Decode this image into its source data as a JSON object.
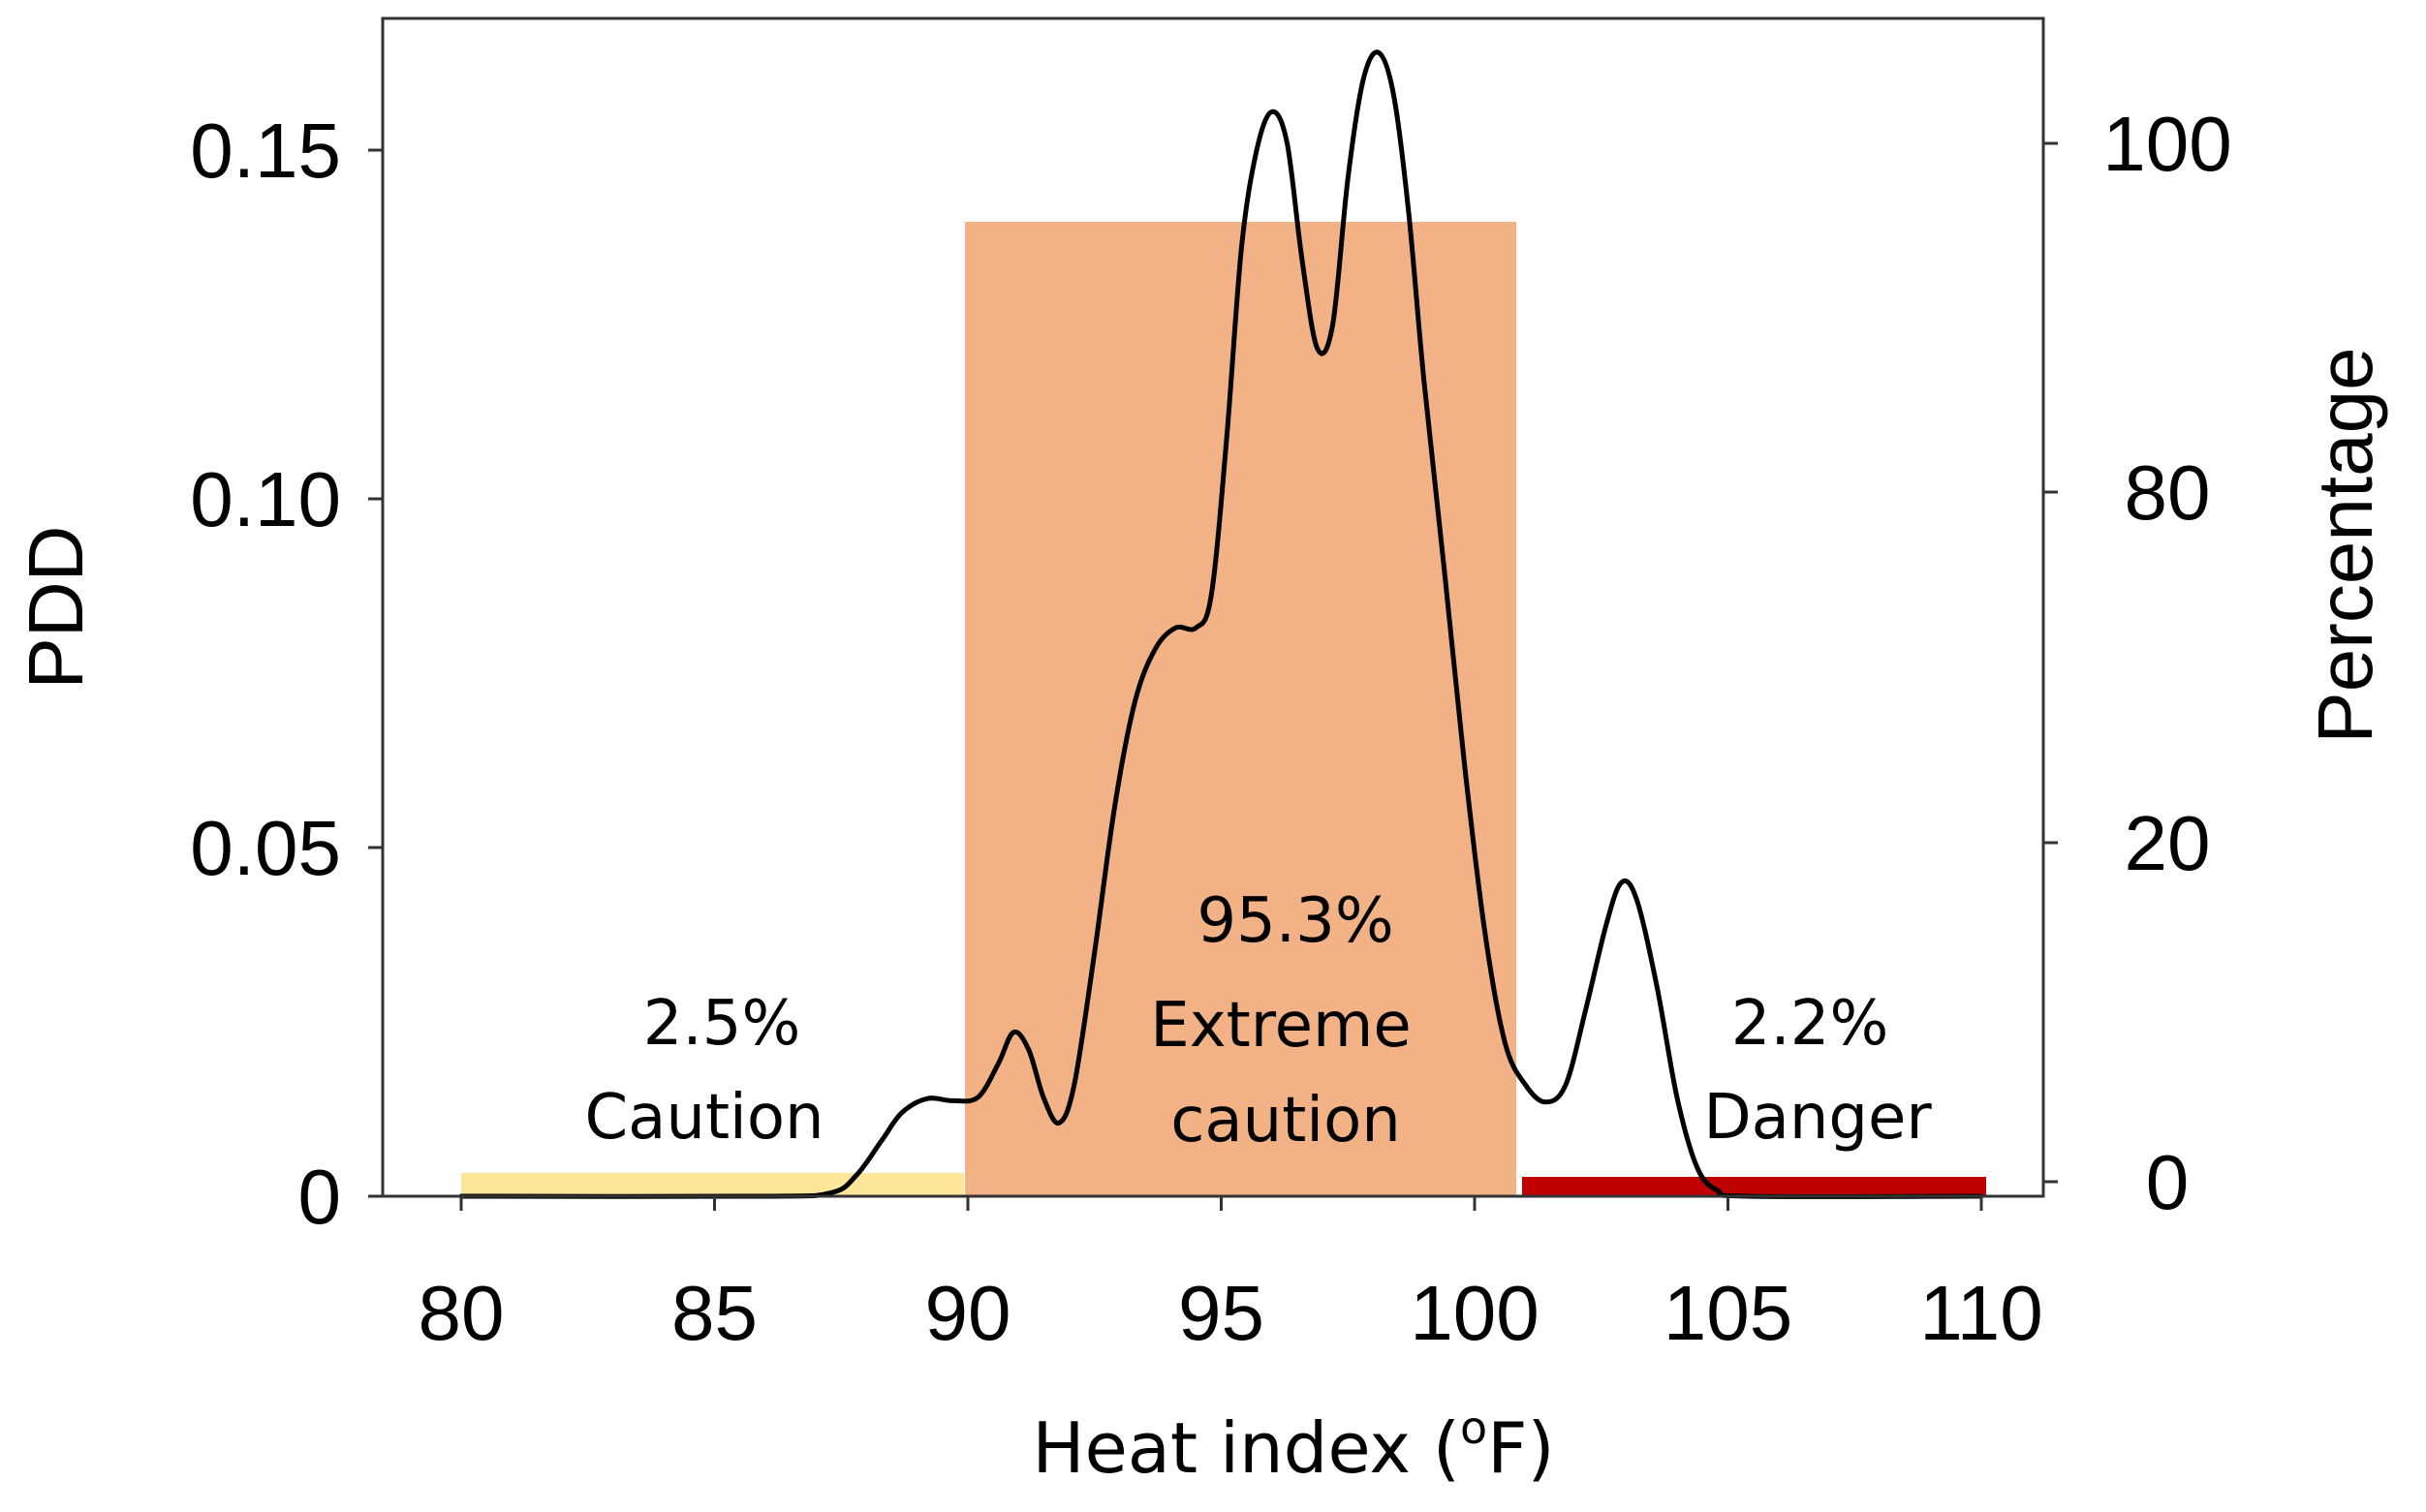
{
  "chart_data": {
    "type": "area",
    "xlabel_main": "Heat index (",
    "xlabel_sup": "o",
    "xlabel_end": "F)",
    "ylabel_left": "PDD",
    "ylabel_right": "Percentage",
    "xlim": [
      80,
      110
    ],
    "ylim_left": [
      0,
      0.17
    ],
    "ylim_right": [
      0,
      115
    ],
    "x_ticks": [
      80,
      85,
      90,
      95,
      100,
      105,
      110
    ],
    "x_tick_labels": [
      "80",
      "85",
      "90",
      "95",
      "100",
      "105",
      "110"
    ],
    "y_left_ticks": [
      0,
      0.05,
      0.1,
      0.15
    ],
    "y_left_tick_labels": [
      "0",
      "0.05",
      "0.10",
      "0.15"
    ],
    "y_right_ticks": [
      0,
      20,
      80,
      100
    ],
    "y_right_tick_labels": [
      "0",
      "20",
      "80",
      "100"
    ],
    "categories": [
      {
        "name": "Caution",
        "percent_label": "2.5%",
        "label_lines": [
          "2.5%",
          "Caution"
        ],
        "x_range": [
          80,
          90
        ],
        "percentage": 2.5,
        "color": "#fde59a"
      },
      {
        "name": "Extreme caution",
        "percent_label": "95.3%",
        "label_lines": [
          "95.3%",
          "Extreme",
          "caution"
        ],
        "x_range": [
          90,
          101
        ],
        "percentage": 95.3,
        "color": "#f3b286"
      },
      {
        "name": "Danger",
        "percent_label": "2.2%",
        "label_lines": [
          "2.2%",
          "Danger"
        ],
        "x_range": [
          101,
          110
        ],
        "percentage": 2.2,
        "color": "#c00000"
      }
    ],
    "series": [
      {
        "name": "PDD",
        "color": "#000000",
        "x": [
          80,
          86,
          87.3,
          87.8,
          88.3,
          88.7,
          89.2,
          89.7,
          90.2,
          90.6,
          90.9,
          91.2,
          91.5,
          91.8,
          92.1,
          92.5,
          92.9,
          93.3,
          93.7,
          94.1,
          94.5,
          94.8,
          95.1,
          95.4,
          95.7,
          96.0,
          96.3,
          96.6,
          96.9,
          97.2,
          97.5,
          97.8,
          98.1,
          98.4,
          98.7,
          99.0,
          99.4,
          99.8,
          100.2,
          100.6,
          101.0,
          101.4,
          101.8,
          102.2,
          102.6,
          102.9,
          103.2,
          103.6,
          104.0,
          104.4,
          104.8,
          105.4,
          110
        ],
        "y": [
          0,
          0,
          0.0005,
          0.003,
          0.008,
          0.012,
          0.014,
          0.0137,
          0.0142,
          0.019,
          0.0235,
          0.021,
          0.014,
          0.0105,
          0.016,
          0.035,
          0.056,
          0.071,
          0.0785,
          0.0815,
          0.0815,
          0.086,
          0.108,
          0.136,
          0.15,
          0.1555,
          0.151,
          0.134,
          0.1215,
          0.125,
          0.146,
          0.16,
          0.164,
          0.158,
          0.141,
          0.117,
          0.09,
          0.062,
          0.038,
          0.022,
          0.016,
          0.0135,
          0.016,
          0.027,
          0.039,
          0.045,
          0.0425,
          0.03,
          0.014,
          0.004,
          0.0008,
          0,
          0
        ]
      }
    ]
  }
}
